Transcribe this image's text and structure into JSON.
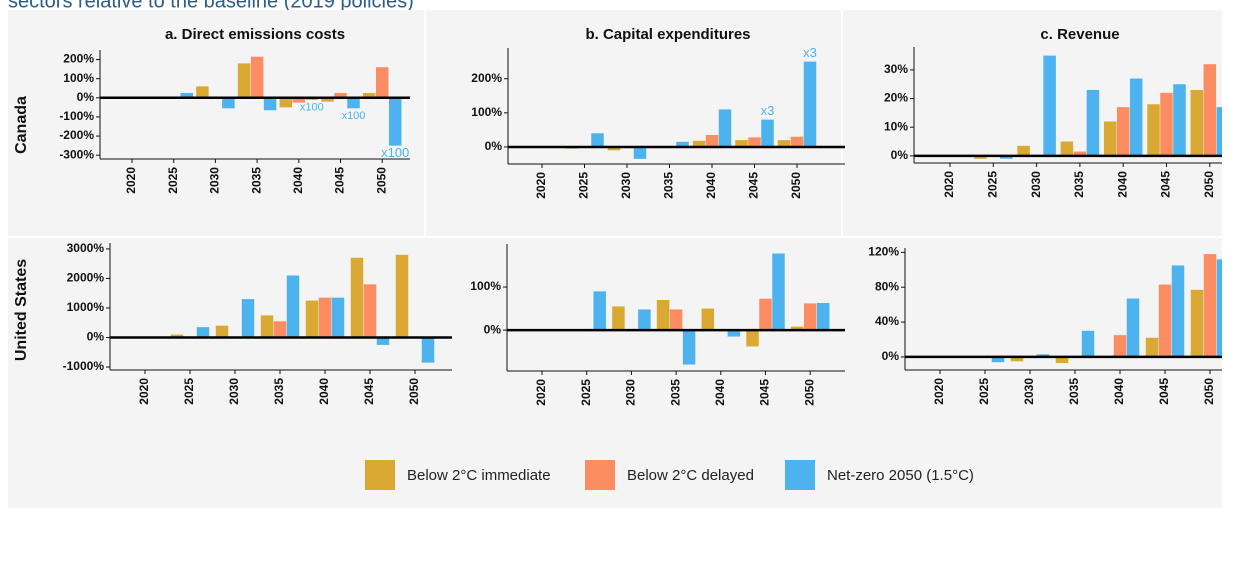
{
  "header": {
    "title": "sectors relative to the baseline (2019 policies)"
  },
  "legend": [
    {
      "name": "Below 2°C immediate",
      "color": "#d9a933"
    },
    {
      "name": "Below 2°C delayed",
      "color": "#fc8d62"
    },
    {
      "name": "Net-zero 2050 (1.5°C)",
      "color": "#4db3ef"
    }
  ],
  "chart_data": [
    {
      "type": "bar",
      "title": "a. Direct emissions costs",
      "row_label": "Canada",
      "categories": [
        "2020",
        "2025",
        "2030",
        "2035",
        "2040",
        "2045",
        "2050"
      ],
      "series": [
        {
          "values": [
            0,
            0,
            60,
            180,
            -50,
            -20,
            25
          ]
        },
        {
          "values": [
            0,
            0,
            0,
            215,
            -25,
            25,
            160
          ]
        },
        {
          "values": [
            0,
            25,
            -55,
            -65,
            -10,
            -55,
            -250
          ]
        }
      ],
      "ylim": [
        -320,
        250
      ],
      "yticks": [
        {
          "value": -300,
          "label": "-300%"
        },
        {
          "value": -200,
          "label": "-200%"
        },
        {
          "value": -100,
          "label": "-100%"
        },
        {
          "value": 0,
          "label": "0%"
        },
        {
          "value": 100,
          "label": "100%"
        },
        {
          "value": 200,
          "label": "200%"
        }
      ],
      "annotations": [
        {
          "text": "x100",
          "category": "2040",
          "series": "Net-zero 2050 (1.5°C)"
        },
        {
          "text": "x100",
          "category": "2045",
          "series": "Net-zero 2050 (1.5°C)"
        },
        {
          "text": "x100",
          "category": "2050",
          "series": "Net-zero 2050 (1.5°C)"
        }
      ]
    },
    {
      "type": "bar",
      "title": "b. Capital expenditures",
      "categories": [
        "2020",
        "2025",
        "2030",
        "2035",
        "2040",
        "2045",
        "2050"
      ],
      "series": [
        {
          "values": [
            0,
            -5,
            -10,
            0,
            18,
            20,
            20
          ]
        },
        {
          "values": [
            0,
            0,
            0,
            0,
            35,
            28,
            30
          ]
        },
        {
          "values": [
            0,
            40,
            -35,
            15,
            110,
            80,
            250
          ]
        }
      ],
      "ylim": [
        -50,
        290
      ],
      "yticks": [
        {
          "value": 0,
          "label": "0%"
        },
        {
          "value": 100,
          "label": "100%"
        },
        {
          "value": 200,
          "label": "200%"
        }
      ],
      "annotations": [
        {
          "text": "x3",
          "category": "2045",
          "series": "Net-zero 2050 (1.5°C)"
        },
        {
          "text": "x3",
          "category": "2050",
          "series": "Net-zero 2050 (1.5°C)"
        }
      ]
    },
    {
      "type": "bar",
      "title": "c. Revenue",
      "categories": [
        "2020",
        "2025",
        "2030",
        "2035",
        "2040",
        "2045",
        "2050"
      ],
      "series": [
        {
          "values": [
            0,
            -1,
            3.5,
            5,
            12,
            18,
            23
          ]
        },
        {
          "values": [
            0,
            0,
            0,
            1.5,
            17,
            22,
            32
          ]
        },
        {
          "values": [
            0,
            -1,
            35,
            23,
            27,
            25,
            17
          ]
        }
      ],
      "ylim": [
        -2.5,
        38
      ],
      "yticks": [
        {
          "value": 0,
          "label": "0%"
        },
        {
          "value": 10,
          "label": "10%"
        },
        {
          "value": 20,
          "label": "20%"
        },
        {
          "value": 30,
          "label": "30%"
        }
      ]
    },
    {
      "type": "bar",
      "row_label": "United States",
      "categories": [
        "2020",
        "2025",
        "2030",
        "2035",
        "2040",
        "2045",
        "2050"
      ],
      "series": [
        {
          "values": [
            0,
            100,
            400,
            750,
            1250,
            2700,
            2800
          ]
        },
        {
          "values": [
            0,
            0,
            0,
            550,
            1350,
            1800,
            0
          ]
        },
        {
          "values": [
            0,
            350,
            1300,
            2100,
            1350,
            -250,
            -850
          ]
        }
      ],
      "ylim": [
        -1100,
        3200
      ],
      "yticks": [
        {
          "value": -1000,
          "label": "-1000%"
        },
        {
          "value": 0,
          "label": "0%"
        },
        {
          "value": 1000,
          "label": "1000%"
        },
        {
          "value": 2000,
          "label": "2000%"
        },
        {
          "value": 3000,
          "label": "3000%"
        }
      ]
    },
    {
      "type": "bar",
      "categories": [
        "2020",
        "2025",
        "2030",
        "2035",
        "2040",
        "2045",
        "2050"
      ],
      "series": [
        {
          "values": [
            0,
            0,
            55,
            70,
            50,
            -38,
            8
          ]
        },
        {
          "values": [
            0,
            0,
            0,
            48,
            0,
            73,
            62
          ]
        },
        {
          "values": [
            0,
            90,
            48,
            -80,
            -15,
            178,
            63
          ]
        }
      ],
      "ylim": [
        -95,
        200
      ],
      "yticks": [
        {
          "value": 0,
          "label": "0%"
        },
        {
          "value": 100,
          "label": "100%"
        }
      ]
    },
    {
      "type": "bar",
      "categories": [
        "2020",
        "2025",
        "2030",
        "2035",
        "2040",
        "2045",
        "2050"
      ],
      "series": [
        {
          "values": [
            0,
            0,
            -5,
            -7,
            0,
            22,
            77
          ]
        },
        {
          "values": [
            0,
            0,
            0,
            0,
            25,
            83,
            118
          ]
        },
        {
          "values": [
            0,
            -6,
            3,
            30,
            67,
            105,
            112
          ]
        }
      ],
      "ylim": [
        -15,
        125
      ],
      "yticks": [
        {
          "value": 0,
          "label": "0%"
        },
        {
          "value": 40,
          "label": "40%"
        },
        {
          "value": 80,
          "label": "80%"
        },
        {
          "value": 120,
          "label": "120%"
        }
      ]
    }
  ]
}
